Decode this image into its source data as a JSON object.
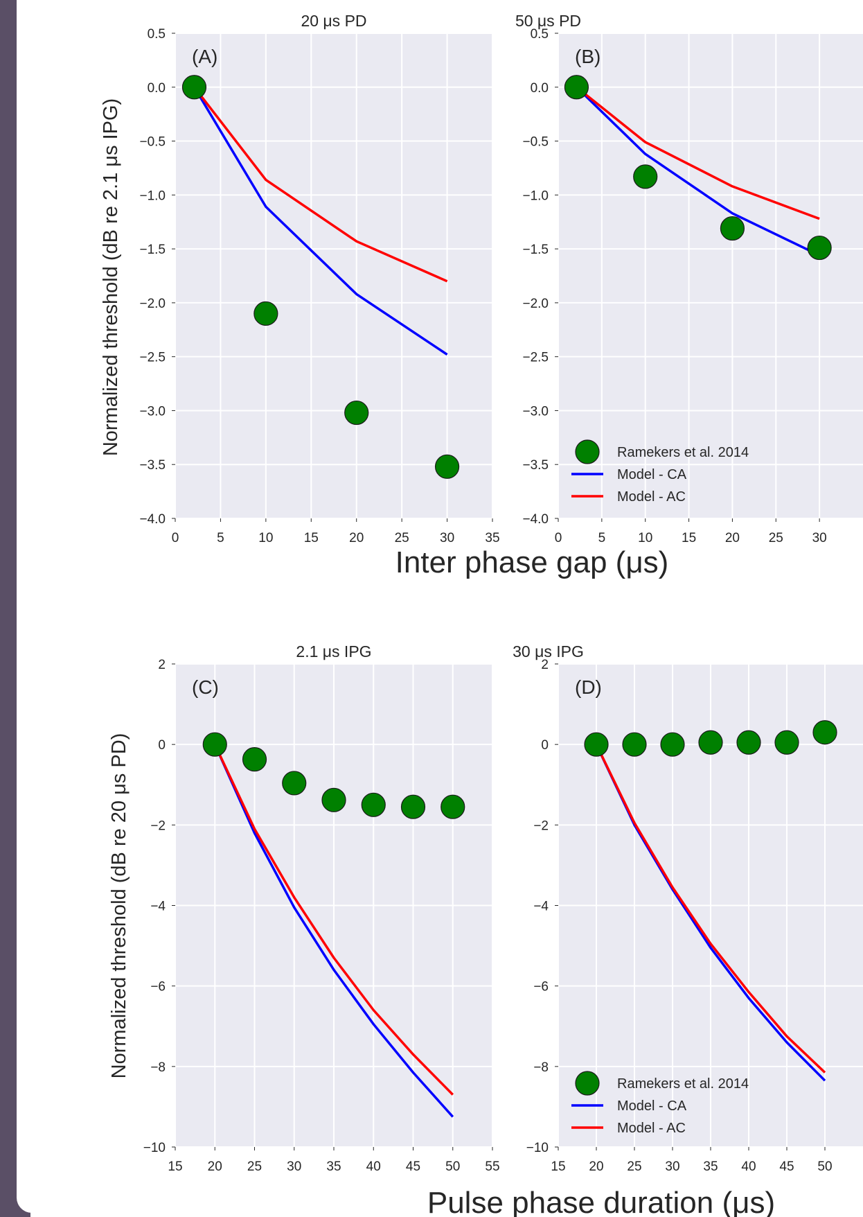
{
  "colors": {
    "sidebar": "#5a4f66",
    "plot_bg": "#eaeaf2",
    "grid": "#ffffff",
    "marker": "#008000",
    "model_ca": "#0000ff",
    "model_ac": "#ff0000"
  },
  "chart_data": [
    {
      "type": "line",
      "panel_label": "(A)",
      "title": "20 μs PD",
      "xlim": [
        0,
        35
      ],
      "ylim": [
        -4.0,
        0.5
      ],
      "xticks": [
        "0",
        "5",
        "10",
        "15",
        "20",
        "25",
        "30",
        "35"
      ],
      "yticks": [
        "0.5",
        "0.0",
        "−0.5",
        "−1.0",
        "−1.5",
        "−2.0",
        "−2.5",
        "−3.0",
        "−3.5",
        "−4.0"
      ],
      "grid": true,
      "series": [
        {
          "name": "Ramekers et al. 2014",
          "kind": "marker",
          "x": [
            2.1,
            10,
            20,
            30
          ],
          "y": [
            0.0,
            -2.1,
            -3.02,
            -3.52
          ]
        },
        {
          "name": "Model - CA",
          "kind": "line",
          "x": [
            2.1,
            10,
            20,
            30
          ],
          "y": [
            0.0,
            -1.11,
            -1.92,
            -2.48
          ]
        },
        {
          "name": "Model - AC",
          "kind": "line",
          "x": [
            2.1,
            10,
            20,
            30
          ],
          "y": [
            0.0,
            -0.86,
            -1.43,
            -1.8
          ]
        }
      ]
    },
    {
      "type": "line",
      "panel_label": "(B)",
      "title": "50 μs PD",
      "xlim": [
        0,
        35
      ],
      "ylim": [
        -4.0,
        0.5
      ],
      "xticks": [
        "0",
        "5",
        "10",
        "15",
        "20",
        "25",
        "30"
      ],
      "yticks": [
        "0.5",
        "0.0",
        "−0.5",
        "−1.0",
        "−1.5",
        "−2.0",
        "−2.5",
        "−3.0",
        "−3.5",
        "−4.0"
      ],
      "grid": true,
      "legend": [
        "Ramekers et al. 2014",
        "Model - CA",
        "Model - AC"
      ],
      "series": [
        {
          "name": "Ramekers et al. 2014",
          "kind": "marker",
          "x": [
            2.1,
            10,
            20,
            30
          ],
          "y": [
            0.0,
            -0.83,
            -1.31,
            -1.49
          ]
        },
        {
          "name": "Model - CA",
          "kind": "line",
          "x": [
            2.1,
            10,
            20,
            30
          ],
          "y": [
            0.0,
            -0.62,
            -1.17,
            -1.56
          ]
        },
        {
          "name": "Model - AC",
          "kind": "line",
          "x": [
            2.1,
            10,
            20,
            30
          ],
          "y": [
            0.0,
            -0.51,
            -0.92,
            -1.22
          ]
        }
      ]
    },
    {
      "type": "line",
      "panel_label": "(C)",
      "title": "2.1 μs IPG",
      "xlim": [
        15,
        55
      ],
      "ylim": [
        -10,
        2
      ],
      "xticks": [
        "15",
        "20",
        "25",
        "30",
        "35",
        "40",
        "45",
        "50",
        "55"
      ],
      "yticks": [
        "2",
        "0",
        "−2",
        "−4",
        "−6",
        "−8",
        "−10"
      ],
      "grid": true,
      "series": [
        {
          "name": "Ramekers et al. 2014",
          "kind": "marker",
          "x": [
            20,
            25,
            30,
            35,
            40,
            45,
            50
          ],
          "y": [
            0.0,
            -0.37,
            -0.96,
            -1.38,
            -1.5,
            -1.55,
            -1.55
          ]
        },
        {
          "name": "Model - CA",
          "kind": "line",
          "x": [
            20,
            25,
            30,
            35,
            40,
            45,
            50
          ],
          "y": [
            0.0,
            -2.2,
            -4.05,
            -5.6,
            -6.95,
            -8.15,
            -9.25
          ]
        },
        {
          "name": "Model - AC",
          "kind": "line",
          "x": [
            20,
            25,
            30,
            35,
            40,
            45,
            50
          ],
          "y": [
            0.0,
            -2.1,
            -3.8,
            -5.3,
            -6.6,
            -7.7,
            -8.7
          ]
        }
      ]
    },
    {
      "type": "line",
      "panel_label": "(D)",
      "title": "30 μs IPG",
      "xlim": [
        15,
        55
      ],
      "ylim": [
        -10,
        2
      ],
      "xticks": [
        "15",
        "20",
        "25",
        "30",
        "35",
        "40",
        "45",
        "50"
      ],
      "yticks": [
        "2",
        "0",
        "−2",
        "−4",
        "−6",
        "−8",
        "−10"
      ],
      "grid": true,
      "legend": [
        "Ramekers et al. 2014",
        "Model - CA",
        "Model - AC"
      ],
      "series": [
        {
          "name": "Ramekers et al. 2014",
          "kind": "marker",
          "x": [
            20,
            25,
            30,
            35,
            40,
            45,
            50
          ],
          "y": [
            0.0,
            0.0,
            0.0,
            0.05,
            0.05,
            0.05,
            0.3
          ]
        },
        {
          "name": "Model - CA",
          "kind": "line",
          "x": [
            20,
            25,
            30,
            35,
            40,
            45,
            50
          ],
          "y": [
            0.0,
            -2.0,
            -3.6,
            -5.05,
            -6.3,
            -7.4,
            -8.35
          ]
        },
        {
          "name": "Model - AC",
          "kind": "line",
          "x": [
            20,
            25,
            30,
            35,
            40,
            45,
            50
          ],
          "y": [
            0.0,
            -1.95,
            -3.55,
            -4.95,
            -6.15,
            -7.25,
            -8.15
          ]
        }
      ]
    }
  ],
  "axis_labels": {
    "top_ylabel": "Normalized threshold (dB re 2.1 μs IPG)",
    "top_xlabel": "Inter phase gap (μs)",
    "bottom_ylabel": "Normalized threshold (dB re 20 μs PD)",
    "bottom_xlabel": "Pulse phase duration (μs)"
  }
}
